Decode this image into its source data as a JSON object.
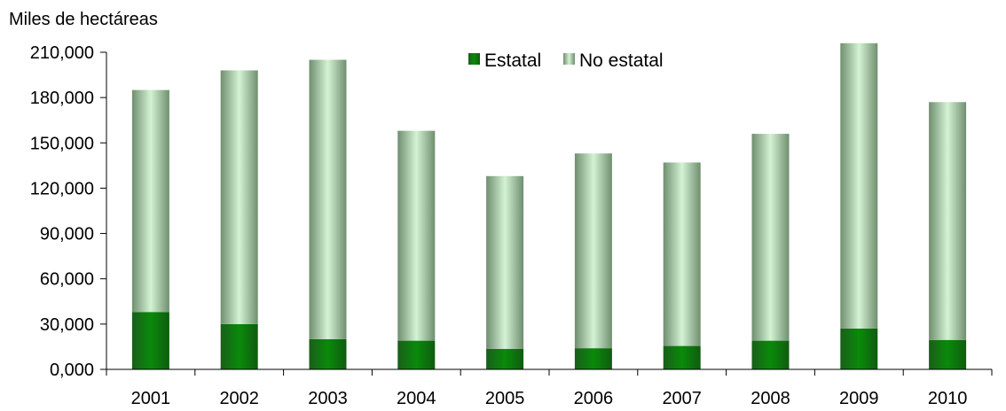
{
  "chart_data": {
    "type": "bar",
    "stacked": true,
    "ylabel": "Miles de hectáreas",
    "xlabel": "",
    "categories": [
      "2001",
      "2002",
      "2003",
      "2004",
      "2005",
      "2006",
      "2007",
      "2008",
      "2009",
      "2010"
    ],
    "series": [
      {
        "name": "Estatal",
        "color": "#0b7a0b",
        "values": [
          38000,
          30000,
          20000,
          19000,
          13500,
          14000,
          15500,
          19000,
          27000,
          19500
        ]
      },
      {
        "name": "No estatal",
        "color": "#a8dca8",
        "values": [
          147000,
          168000,
          185000,
          139000,
          114500,
          129000,
          121500,
          137000,
          189000,
          157500
        ]
      }
    ],
    "ylim": [
      0,
      210000
    ],
    "yticks": [
      "0,000",
      "30,000",
      "60,000",
      "90,000",
      "120,000",
      "150,000",
      "180,000",
      "210,000"
    ],
    "ytick_values": [
      0,
      30000,
      60000,
      90000,
      120000,
      150000,
      180000,
      210000
    ],
    "grid": false,
    "legend_position": "top-center"
  }
}
